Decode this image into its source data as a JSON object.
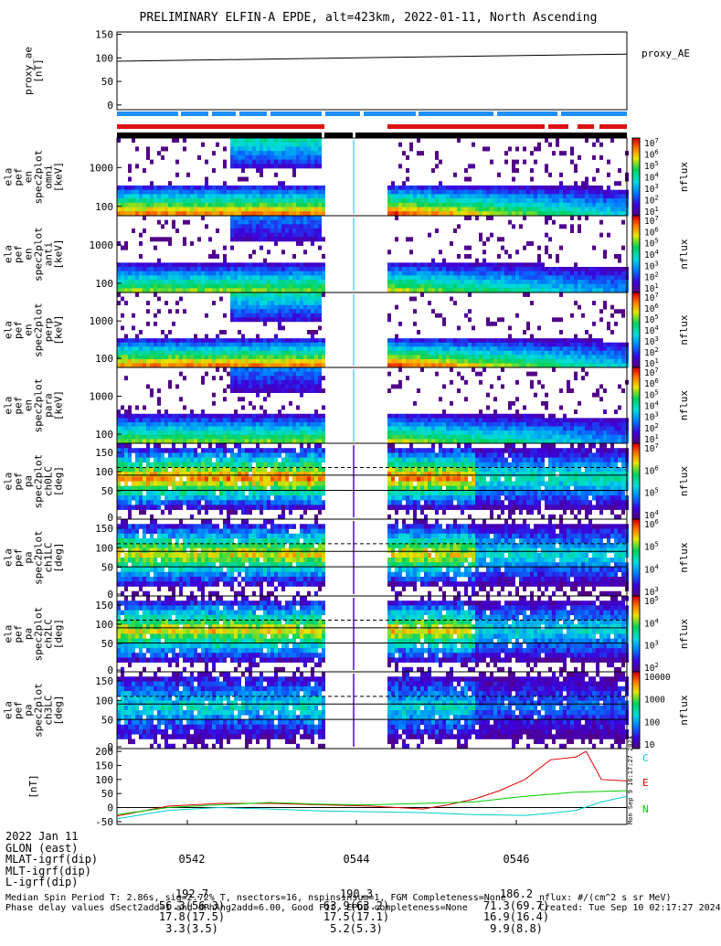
{
  "figure": {
    "title": "PRELIMINARY ELFIN-A EPDE, alt=423km, 2022-01-11, North Ascending"
  },
  "colors": {
    "bar_blue": "#1e90ff",
    "bar_red": "#dd1111",
    "bar_black": "#000000",
    "trace_red": "#dd0000",
    "trace_green": "#00cc00",
    "trace_cyan": "#00cccc"
  },
  "chart_data": [
    {
      "type": "line",
      "ylabel": "proxy_ae\n[nT]",
      "series": [
        {
          "name": "proxy_AE",
          "x": [
            0,
            1
          ],
          "values": [
            93,
            108
          ]
        }
      ],
      "yticks": [
        "150",
        "100",
        "50",
        "0"
      ],
      "ylim": [
        -10,
        155
      ]
    },
    {
      "type": "heatmap",
      "ylabel": "ela\npef\nen\nspec2plot\nomni\n[keV]",
      "yticks": [
        "1000",
        "100"
      ],
      "colorbar_label": "nflux",
      "colorbar_ticks": [
        "10^7",
        "10^6",
        "10^5",
        "10^4",
        "10^3",
        "10^2",
        "10^1"
      ],
      "cmap_levels": [
        0.96,
        0.85,
        0.7,
        0.6,
        0.35
      ]
    },
    {
      "type": "heatmap",
      "ylabel": "ela\npef\nen\nspec2plot\nanti\n[keV]",
      "yticks": [
        "1000",
        "100"
      ],
      "colorbar_label": "nflux",
      "colorbar_ticks": [
        "10^7",
        "10^6",
        "10^5",
        "10^4",
        "10^3",
        "10^2",
        "10^1"
      ],
      "cmap_levels": [
        0.75,
        0.5,
        0.35,
        0.25,
        0.05
      ]
    },
    {
      "type": "heatmap",
      "ylabel": "ela\npef\nen\nspec2plot\nperp\n[keV]",
      "yticks": [
        "1000",
        "100"
      ],
      "colorbar_label": "nflux",
      "colorbar_ticks": [
        "10^7",
        "10^6",
        "10^5",
        "10^4",
        "10^3",
        "10^2",
        "10^1"
      ],
      "cmap_levels": [
        0.96,
        0.85,
        0.7,
        0.6,
        0.35
      ]
    },
    {
      "type": "heatmap",
      "ylabel": "ela\npef\nen\nspec2plot\npara\n[keV]",
      "yticks": [
        "1000",
        "100"
      ],
      "colorbar_label": "nflux",
      "colorbar_ticks": [
        "10^7",
        "10^6",
        "10^5",
        "10^4",
        "10^3",
        "10^2",
        "10^1"
      ],
      "cmap_levels": [
        0.75,
        0.5,
        0.35,
        0.25,
        0.05
      ]
    },
    {
      "type": "heatmap",
      "ylabel": "ela\npef\npa\nspec2plot\nch0LC\n[deg]",
      "yticks": [
        "150",
        "100",
        "50",
        "0"
      ],
      "colorbar_label": "nflux",
      "colorbar_ticks": [
        "10^7",
        "10^6",
        "10^5",
        "10^4"
      ],
      "cmap_levels": [
        0.9,
        0.8,
        0.6,
        0.4,
        0.2
      ]
    },
    {
      "type": "heatmap",
      "ylabel": "ela\npef\npa\nspec2plot\nch1LC\n[deg]",
      "yticks": [
        "150",
        "100",
        "50",
        "0"
      ],
      "colorbar_label": "nflux",
      "colorbar_ticks": [
        "10^6",
        "10^5",
        "10^4",
        "10^3"
      ],
      "cmap_levels": [
        0.85,
        0.7,
        0.5,
        0.35,
        0.15
      ]
    },
    {
      "type": "heatmap",
      "ylabel": "ela\npef\npa\nspec2plot\nch2LC\n[deg]",
      "yticks": [
        "150",
        "100",
        "50",
        "0"
      ],
      "colorbar_label": "nflux",
      "colorbar_ticks": [
        "10^5",
        "10^4",
        "10^3",
        "10^2"
      ],
      "cmap_levels": [
        0.85,
        0.7,
        0.5,
        0.35,
        0.15
      ]
    },
    {
      "type": "heatmap",
      "ylabel": "ela\npef\npa\nspec2plot\nch3LC\n[deg]",
      "yticks": [
        "150",
        "100",
        "50",
        "0"
      ],
      "colorbar_label": "nflux",
      "colorbar_ticks": [
        "10000",
        "1000",
        "100",
        "10"
      ],
      "cmap_levels": [
        0.6,
        0.4,
        0.25,
        0.15,
        0.05
      ]
    },
    {
      "type": "line",
      "ylabel": "[nT]",
      "yticks": [
        "200",
        "150",
        "100",
        "50",
        "0",
        "-50"
      ],
      "ylim": [
        -60,
        210
      ],
      "series": [
        {
          "name": "E",
          "x": [
            0,
            0.1,
            0.2,
            0.3,
            0.4,
            0.5,
            0.55,
            0.6,
            0.65,
            0.7,
            0.75,
            0.8,
            0.85,
            0.9,
            0.92,
            0.95,
            1.0
          ],
          "values": [
            -30,
            5,
            15,
            15,
            10,
            5,
            0,
            -5,
            10,
            30,
            60,
            100,
            170,
            180,
            200,
            100,
            95
          ]
        },
        {
          "name": "N",
          "x": [
            0,
            0.1,
            0.2,
            0.3,
            0.4,
            0.5,
            0.6,
            0.7,
            0.8,
            0.9,
            1.0
          ],
          "values": [
            -25,
            0,
            10,
            18,
            12,
            10,
            15,
            20,
            40,
            55,
            60
          ]
        },
        {
          "name": "C",
          "x": [
            0,
            0.1,
            0.2,
            0.3,
            0.4,
            0.5,
            0.6,
            0.7,
            0.8,
            0.85,
            0.9,
            0.95,
            1.0
          ],
          "values": [
            -40,
            -10,
            0,
            -5,
            -12,
            -15,
            -18,
            -25,
            -28,
            -20,
            -10,
            20,
            40
          ]
        }
      ],
      "side_text": "Mon Sep 9 16:17:27 2024"
    }
  ],
  "orbit": {
    "label_col": "2022 Jan 11\nGLON (east)\nMLAT-igrf(dip)\nMLT-igrf(dip)\nL-igrf(dip)",
    "columns": [
      {
        "time": "0542",
        "lines": "192.7\n56.3(56.3)\n17.8(17.5)\n3.3(3.5)"
      },
      {
        "time": "0544",
        "lines": "190.3\n63.9(63.2)\n17.5(17.1)\n5.2(5.3)"
      },
      {
        "time": "0546",
        "lines": "186.2\n71.3(69.7)\n16.9(16.4)\n9.9(8.8)"
      }
    ]
  },
  "footer": {
    "left": "Median Spin Period T: 2.86s, sig=2.72% T, nsectors=16, nspinsinsum=1, FGM Completeness=None\nPhase delay values dSect2add=1 and dPhAng2add=6.00, Good Fit, EPDE completeness=None",
    "right": "nflux: #/(cm^2 s sr MeV)\nCreated: Tue Sep 10 02:17:27 2024"
  }
}
